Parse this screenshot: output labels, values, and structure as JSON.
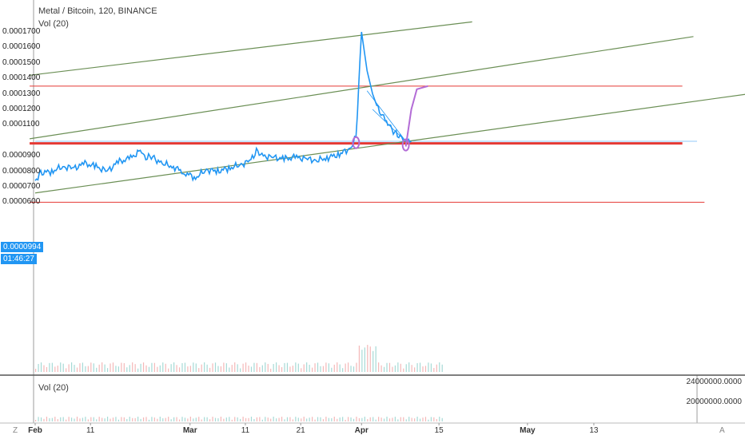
{
  "header": {
    "symbol": "Metal / Bitcoin, 120, BINANCE",
    "main_indicator": "Vol (20)",
    "volume_pane_label": "Vol (20)"
  },
  "price_axis": {
    "ticks": [
      "0.0001700",
      "0.0001600",
      "0.0001500",
      "0.0001400",
      "0.0001300",
      "0.0001200",
      "0.0001100",
      "0.0000900",
      "0.0000800",
      "0.0000700",
      "0.0000600"
    ],
    "current_price": "0.0000994",
    "countdown": "01:46:27"
  },
  "volume_axis": {
    "ticks": [
      "24000000.0000",
      "20000000.0000"
    ]
  },
  "time_axis": {
    "ticks": [
      "Feb",
      "11",
      "Mar",
      "11",
      "21",
      "Apr",
      "15",
      "May",
      "13"
    ]
  },
  "corner_labels": {
    "left": "Z",
    "right": "A"
  },
  "colors": {
    "price_line": "#2196f3",
    "projection": "#b36cd6",
    "channel": "#6b8f55",
    "resistance": "#e53935",
    "current_price_line": "#90caf9",
    "tag_bg": "#2196f3",
    "vol_up": "#80cbc4",
    "vol_down": "#ef9a9a"
  },
  "chart_data": {
    "type": "line",
    "title": "Metal / Bitcoin, 120, BINANCE",
    "ylim": [
      5.9e-05,
      0.000174
    ],
    "price_series": {
      "x": [
        "2018-02-01",
        "2018-02-02",
        "2018-02-04",
        "2018-02-06",
        "2018-02-08",
        "2018-02-10",
        "2018-02-12",
        "2018-02-14",
        "2018-02-16",
        "2018-02-18",
        "2018-02-20",
        "2018-02-21",
        "2018-02-22",
        "2018-02-23",
        "2018-02-24",
        "2018-02-26",
        "2018-02-28",
        "2018-03-02",
        "2018-03-04",
        "2018-03-06",
        "2018-03-08",
        "2018-03-10",
        "2018-03-12",
        "2018-03-13",
        "2018-03-14",
        "2018-03-16",
        "2018-03-18",
        "2018-03-20",
        "2018-03-22",
        "2018-03-24",
        "2018-03-26",
        "2018-03-28",
        "2018-03-30",
        "2018-03-31",
        "2018-04-01",
        "2018-04-02",
        "2018-04-03",
        "2018-04-04",
        "2018-04-05",
        "2018-04-06",
        "2018-04-07",
        "2018-04-08",
        "2018-04-09",
        "2018-04-10"
      ],
      "y": [
        7.4e-05,
        7.9e-05,
        8e-05,
        8.3e-05,
        8.2e-05,
        8.5e-05,
        8.3e-05,
        8e-05,
        8.6e-05,
        8.8e-05,
        9.3e-05,
        8.8e-05,
        9e-05,
        8.7e-05,
        8.5e-05,
        8.3e-05,
        7.9e-05,
        7.6e-05,
        8.1e-05,
        8e-05,
        8.2e-05,
        8.4e-05,
        8.7e-05,
        9.3e-05,
        9e-05,
        8.9e-05,
        8.8e-05,
        8.9e-05,
        8.8e-05,
        8.7e-05,
        8.9e-05,
        9.1e-05,
        9.5e-05,
        0.000102,
        0.00017,
        0.000145,
        0.00013,
        0.00012,
        0.000115,
        0.00011,
        0.000105,
        0.000102,
        9.94e-05,
        9.94e-05
      ]
    },
    "projection_series": {
      "x": [
        "2018-04-09",
        "2018-04-10",
        "2018-04-11",
        "2018-04-12",
        "2018-04-13"
      ],
      "y": [
        9.6e-05,
        0.00012,
        0.000133,
        0.000134,
        0.000135
      ]
    },
    "channel_lines": [
      {
        "x": [
          "2018-01-31",
          "2018-04-21"
        ],
        "y": [
          0.000142,
          0.0001765
        ]
      },
      {
        "x": [
          "2018-01-31",
          "2018-05-31"
        ],
        "y": [
          0.000101,
          0.000167
        ]
      },
      {
        "x": [
          "2018-02-01",
          "2018-06-14"
        ],
        "y": [
          6.6e-05,
          0.000132
        ]
      }
    ],
    "resistance_lines": [
      {
        "level": 0.000135,
        "x": [
          "2018-01-31",
          "2018-05-29"
        ],
        "thick": false
      },
      {
        "level": 9.8e-05,
        "x": [
          "2018-01-31",
          "2018-05-29"
        ],
        "thick": true
      },
      {
        "level": 6e-05,
        "x": [
          "2018-01-31",
          "2018-06-02"
        ],
        "thick": false
      }
    ]
  }
}
